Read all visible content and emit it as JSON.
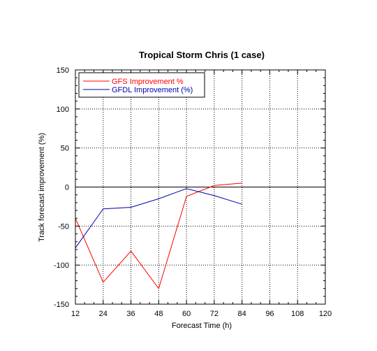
{
  "chart_data": {
    "type": "line",
    "title": "Tropical Storm Chris (1 case)",
    "xlabel": "Forecast Time (h)",
    "ylabel": "Track forecast improvement (%)",
    "xlim": [
      12,
      120
    ],
    "ylim": [
      -150,
      150
    ],
    "xticks": [
      12,
      24,
      36,
      48,
      60,
      72,
      84,
      96,
      108,
      120
    ],
    "yticks": [
      -150,
      -100,
      -50,
      0,
      50,
      100,
      150
    ],
    "grid": true,
    "zero_line": true,
    "legend_position": "top-left",
    "series": [
      {
        "name": "GFS Improvement %",
        "color": "#ff0000",
        "x": [
          12,
          24,
          36,
          48,
          60,
          72,
          84
        ],
        "y": [
          -40,
          -122,
          -82,
          -130,
          -12,
          2,
          5
        ]
      },
      {
        "name": "GFDL Improvement (%)",
        "color": "#0000aa",
        "x": [
          12,
          24,
          36,
          48,
          60,
          72,
          84
        ],
        "y": [
          -78,
          -28,
          -26,
          -15,
          -2,
          -11,
          -22
        ]
      }
    ]
  }
}
